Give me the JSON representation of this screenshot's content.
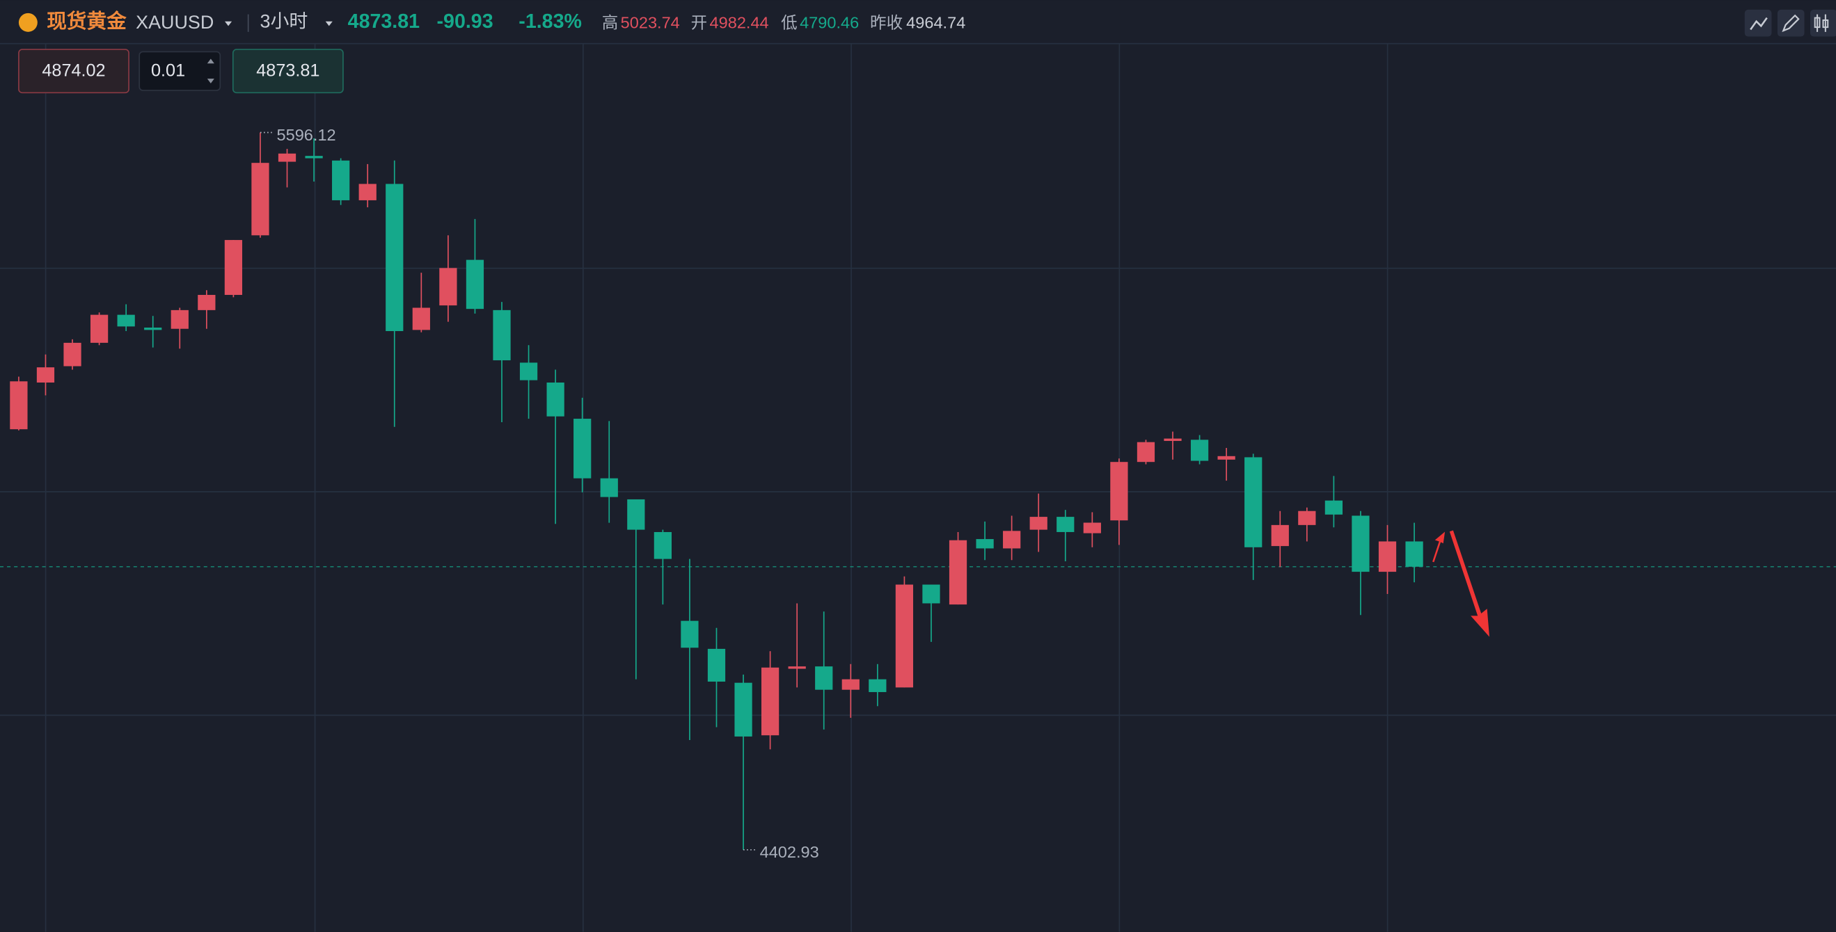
{
  "header": {
    "name": "现货黄金",
    "symbol": "XAUUSD",
    "interval": "3小时",
    "price": "4873.81",
    "change": "-90.93",
    "change_pct": "-1.83%",
    "stats": [
      {
        "label": "高",
        "value": "5023.74"
      },
      {
        "label": "开",
        "value": "4982.44"
      },
      {
        "label": "低",
        "value": "4790.46"
      },
      {
        "label": "昨收",
        "value": "4964.74"
      }
    ]
  },
  "order": {
    "sell": "4874.02",
    "qty": "0.01",
    "buy": "4873.81"
  },
  "chart": {
    "type": "candlestick",
    "up_color": "#e0505f",
    "down_color": "#15a98b",
    "high_label": "5596.12",
    "low_label": "4402.93",
    "candles": [
      [
        5102.5,
        5190.0,
        5100.6,
        5182.2
      ],
      [
        5180.2,
        5226.9,
        5158.9,
        5205.5
      ],
      [
        5207.4,
        5252.1,
        5201.6,
        5246.3
      ],
      [
        5246.3,
        5296.8,
        5242.4,
        5292.9
      ],
      [
        5292.9,
        5310.4,
        5265.8,
        5273.5
      ],
      [
        5271.6,
        5291.0,
        5238.5,
        5267.7
      ],
      [
        5269.6,
        5304.6,
        5236.6,
        5300.7
      ],
      [
        5300.7,
        5333.8,
        5269.6,
        5326.0
      ],
      [
        5326.0,
        5417.3,
        5322.1,
        5417.3
      ],
      [
        5425.1,
        5596.12,
        5421.2,
        5545.6
      ],
      [
        5547.5,
        5568.9,
        5504.8,
        5561.1
      ],
      [
        5557.2,
        5586.4,
        5514.5,
        5553.3
      ],
      [
        5549.5,
        5553.3,
        5475.6,
        5483.4
      ],
      [
        5483.4,
        5543.6,
        5471.7,
        5510.6
      ],
      [
        5510.6,
        5549.5,
        5106.4,
        5265.8
      ],
      [
        5267.7,
        5362.9,
        5263.8,
        5304.6
      ],
      [
        5308.5,
        5425.1,
        5281.3,
        5370.7
      ],
      [
        5384.3,
        5452.3,
        5294.9,
        5302.7
      ],
      [
        5300.7,
        5314.3,
        5114.2,
        5217.2
      ],
      [
        5213.3,
        5242.4,
        5120.0,
        5184.1
      ],
      [
        5180.2,
        5201.6,
        4945.1,
        5123.9
      ],
      [
        5120.0,
        5154.9,
        4997.6,
        5020.9
      ],
      [
        5020.9,
        5116.1,
        4947.0,
        4989.8
      ],
      [
        4985.9,
        4985.9,
        4686.6,
        4935.4
      ],
      [
        4931.5,
        4935.4,
        4811.0,
        4886.8
      ],
      [
        4783.8,
        4886.8,
        4585.6,
        4739.1
      ],
      [
        4737.2,
        4772.1,
        4607.0,
        4682.7
      ],
      [
        4680.8,
        4694.4,
        4402.93,
        4591.4
      ],
      [
        4593.4,
        4733.3,
        4570.0,
        4706.1
      ],
      [
        4704.1,
        4812.9,
        4673.0,
        4708.0
      ],
      [
        4708.0,
        4799.3,
        4603.1,
        4669.2
      ],
      [
        4669.2,
        4711.9,
        4622.5,
        4686.6
      ],
      [
        4686.6,
        4711.9,
        4641.9,
        4665.3
      ],
      [
        4673.0,
        4857.7,
        4673.0,
        4844.1
      ],
      [
        4844.1,
        4844.1,
        4748.8,
        4812.9
      ],
      [
        4811.0,
        4931.5,
        4811.0,
        4917.9
      ],
      [
        4919.8,
        4949.0,
        4884.9,
        4904.3
      ],
      [
        4904.3,
        4958.7,
        4884.9,
        4933.4
      ],
      [
        4935.4,
        4995.6,
        4898.5,
        4956.8
      ],
      [
        4956.8,
        4968.4,
        4882.9,
        4931.5
      ],
      [
        4929.6,
        4964.5,
        4906.2,
        4947.1
      ],
      [
        4950.9,
        5053.9,
        4910.1,
        5048.1
      ],
      [
        5048.1,
        5085.0,
        5044.2,
        5081.1
      ],
      [
        5083.1,
        5098.6,
        5052.0,
        5087.0
      ],
      [
        5085.0,
        5092.8,
        5044.2,
        5050.0
      ],
      [
        5052.0,
        5071.4,
        5017.0,
        5057.8
      ],
      [
        5055.9,
        5061.7,
        4851.8,
        4906.2
      ],
      [
        4908.2,
        4966.5,
        4873.2,
        4943.2
      ],
      [
        4943.2,
        4972.3,
        4915.9,
        4966.5
      ],
      [
        4983.9,
        5024.8,
        4939.3,
        4960.6
      ],
      [
        4958.7,
        4966.5,
        4793.5,
        4865.4
      ],
      [
        4865.4,
        4943.2,
        4828.5,
        4915.9
      ],
      [
        4915.9,
        4947.0,
        4847.9,
        4873.81
      ]
    ]
  }
}
